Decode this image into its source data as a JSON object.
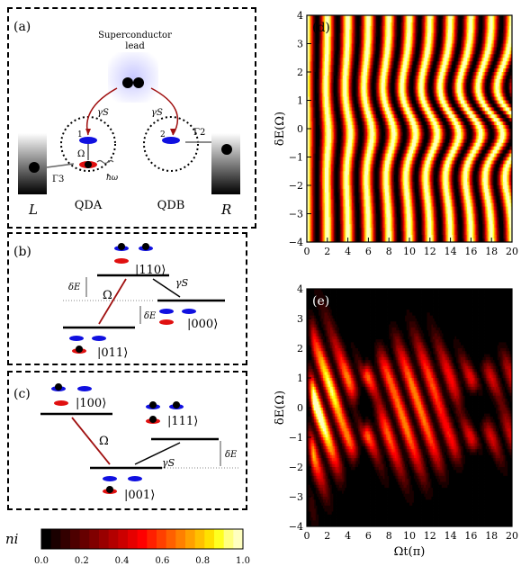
{
  "panels": {
    "a": {
      "label": "(a)",
      "lead_title": "Superconductor",
      "lead_sub": "lead",
      "gamma_s_left": "γS",
      "gamma_s_right": "γS",
      "omega": "Ω",
      "hbar_omega": "ħω",
      "gamma3": "Γ3",
      "gamma2": "Γ2",
      "dot1": "1",
      "dot2": "2",
      "qda": "QDA",
      "qdb": "QDB",
      "lead_left": "L",
      "lead_right": "R"
    },
    "b": {
      "label": "(b)",
      "state_top": "|110⟩",
      "state_right": "|000⟩",
      "state_bottom": "|011⟩",
      "omega": "Ω",
      "gamma_s": "γS",
      "delta_e_left": "δE",
      "delta_e_right": "δE"
    },
    "c": {
      "label": "(c)",
      "state_left": "|100⟩",
      "state_right": "|111⟩",
      "state_bottom": "|001⟩",
      "omega": "Ω",
      "gamma_s": "γS",
      "delta_e": "δE"
    },
    "d": {
      "label": "(d)"
    },
    "e": {
      "label": "(e)"
    }
  },
  "colorbar": {
    "symbol": "ni",
    "ticks": [
      "0.0",
      "0.2",
      "0.4",
      "0.6",
      "0.8",
      "1.0"
    ],
    "colors": [
      "#000000",
      "#1a0000",
      "#330000",
      "#4d0000",
      "#660000",
      "#800000",
      "#990000",
      "#b30000",
      "#cc0000",
      "#e60000",
      "#ff0000",
      "#ff2000",
      "#ff4000",
      "#ff6000",
      "#ff8000",
      "#ffa000",
      "#ffc000",
      "#ffe000",
      "#ffff20",
      "#ffff80",
      "#ffffc0"
    ]
  },
  "chart_data": [
    {
      "type": "heatmap",
      "panel": "(d)",
      "xlabel": "",
      "ylabel": "δE(Ω)",
      "xlim": [
        0,
        20
      ],
      "ylim": [
        -4,
        4
      ],
      "xticks": [
        "0",
        "2",
        "4",
        "6",
        "8",
        "10",
        "12",
        "14",
        "16",
        "18",
        "20"
      ],
      "yticks": [
        "-4",
        "-3",
        "-2",
        "-1",
        "0",
        "1",
        "2",
        "3",
        "4"
      ],
      "description_stripes": 20
    },
    {
      "type": "heatmap",
      "panel": "(e)",
      "xlabel": "Ωt(π)",
      "ylabel": "δE(Ω)",
      "xlim": [
        0,
        20
      ],
      "ylim": [
        -4,
        4
      ],
      "xticks": [
        "0",
        "2",
        "4",
        "6",
        "8",
        "10",
        "12",
        "14",
        "16",
        "18",
        "20"
      ],
      "yticks": [
        "-4",
        "-3",
        "-2",
        "-1",
        "0",
        "1",
        "2",
        "3",
        "4"
      ]
    }
  ]
}
